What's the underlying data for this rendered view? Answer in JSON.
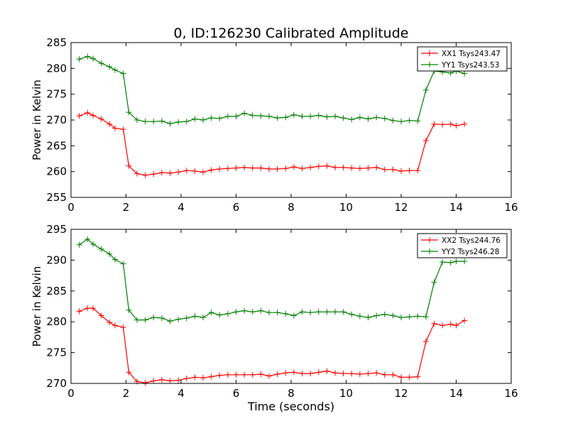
{
  "figure": {
    "title": "0, ID:126230 Calibrated Amplitude",
    "xlabel": "Time (seconds)"
  },
  "colors": {
    "XX": "#ff0000",
    "YY": "#008000",
    "frame": "#000000",
    "background": "#ffffff"
  },
  "chart_data": [
    {
      "type": "line",
      "title": "0, ID:126230 Calibrated Amplitude",
      "xlabel": "",
      "ylabel": "Power in Kelvin",
      "xlim": [
        0,
        16
      ],
      "ylim": [
        255,
        285
      ],
      "xticks": [
        "0",
        "2",
        "4",
        "6",
        "8",
        "10",
        "12",
        "14",
        "16"
      ],
      "yticks": [
        "255",
        "260",
        "265",
        "270",
        "275",
        "280",
        "285"
      ],
      "grid": false,
      "legend_position": "top-right",
      "x": [
        0.3,
        0.6,
        0.8,
        1.1,
        1.4,
        1.6,
        1.9,
        2.1,
        2.4,
        2.7,
        3.0,
        3.3,
        3.6,
        3.9,
        4.2,
        4.5,
        4.8,
        5.1,
        5.4,
        5.7,
        6.0,
        6.3,
        6.6,
        6.9,
        7.2,
        7.5,
        7.8,
        8.1,
        8.4,
        8.7,
        9.0,
        9.3,
        9.6,
        9.9,
        10.2,
        10.5,
        10.8,
        11.1,
        11.4,
        11.7,
        12.0,
        12.3,
        12.6,
        12.9,
        13.2,
        13.5,
        13.8,
        14.0,
        14.3
      ],
      "series": [
        {
          "name": "XX1 Tsys243.47",
          "color": "#ff0000",
          "values": [
            270.8,
            271.4,
            270.9,
            270.2,
            269.2,
            268.4,
            268.2,
            261.1,
            259.6,
            259.3,
            259.5,
            259.8,
            259.7,
            259.9,
            260.2,
            260.1,
            259.9,
            260.3,
            260.5,
            260.6,
            260.7,
            260.8,
            260.7,
            260.7,
            260.5,
            260.5,
            260.6,
            260.9,
            260.6,
            260.8,
            261.0,
            261.1,
            260.8,
            260.8,
            260.7,
            260.6,
            260.7,
            260.8,
            260.4,
            260.4,
            260.1,
            260.2,
            260.2,
            266.0,
            269.2,
            269.1,
            269.2,
            268.9,
            269.2
          ]
        },
        {
          "name": "YY1 Tsys243.53",
          "color": "#008000",
          "values": [
            281.8,
            282.3,
            281.9,
            281.0,
            280.3,
            279.7,
            279.0,
            271.5,
            270.0,
            269.7,
            269.7,
            269.8,
            269.3,
            269.6,
            269.7,
            270.2,
            270.0,
            270.4,
            270.3,
            270.7,
            270.7,
            271.3,
            270.9,
            270.8,
            270.7,
            270.4,
            270.5,
            271.0,
            270.7,
            270.7,
            270.9,
            270.6,
            270.7,
            270.4,
            270.1,
            270.5,
            270.2,
            270.5,
            270.3,
            269.9,
            269.7,
            269.9,
            269.8,
            275.8,
            279.5,
            279.3,
            279.1,
            279.5,
            279.0
          ]
        }
      ]
    },
    {
      "type": "line",
      "title": "",
      "xlabel": "Time (seconds)",
      "ylabel": "Power in Kelvin",
      "xlim": [
        0,
        16
      ],
      "ylim": [
        270,
        295
      ],
      "xticks": [
        "0",
        "2",
        "4",
        "6",
        "8",
        "10",
        "12",
        "14",
        "16"
      ],
      "yticks": [
        "270",
        "275",
        "280",
        "285",
        "290",
        "295"
      ],
      "grid": false,
      "legend_position": "top-right",
      "x": [
        0.3,
        0.6,
        0.8,
        1.1,
        1.4,
        1.6,
        1.9,
        2.1,
        2.4,
        2.7,
        3.0,
        3.3,
        3.6,
        3.9,
        4.2,
        4.5,
        4.8,
        5.1,
        5.4,
        5.7,
        6.0,
        6.3,
        6.6,
        6.9,
        7.2,
        7.5,
        7.8,
        8.1,
        8.4,
        8.7,
        9.0,
        9.3,
        9.6,
        9.9,
        10.2,
        10.5,
        10.8,
        11.1,
        11.4,
        11.7,
        12.0,
        12.3,
        12.6,
        12.9,
        13.2,
        13.5,
        13.8,
        14.0,
        14.3
      ],
      "series": [
        {
          "name": "XX2 Tsys244.76",
          "color": "#ff0000",
          "values": [
            281.7,
            282.2,
            282.2,
            281.0,
            279.9,
            279.4,
            279.1,
            271.8,
            270.3,
            270.1,
            270.4,
            270.6,
            270.4,
            270.5,
            270.8,
            271.0,
            270.9,
            271.1,
            271.3,
            271.4,
            271.4,
            271.4,
            271.4,
            271.5,
            271.2,
            271.5,
            271.7,
            271.8,
            271.6,
            271.6,
            271.8,
            272.0,
            271.7,
            271.6,
            271.6,
            271.5,
            271.6,
            271.7,
            271.4,
            271.4,
            271.0,
            271.0,
            271.1,
            276.8,
            279.7,
            279.4,
            279.6,
            279.4,
            280.2
          ]
        },
        {
          "name": "YY2 Tsys246.28",
          "color": "#008000",
          "values": [
            292.5,
            293.4,
            292.6,
            291.8,
            291.0,
            290.1,
            289.4,
            281.9,
            280.3,
            280.3,
            280.7,
            280.6,
            280.1,
            280.4,
            280.6,
            280.9,
            280.7,
            281.5,
            281.1,
            281.3,
            281.6,
            281.8,
            281.6,
            281.8,
            281.5,
            281.5,
            281.3,
            281.0,
            281.6,
            281.5,
            281.6,
            281.6,
            281.6,
            281.6,
            281.2,
            280.9,
            280.7,
            281.0,
            281.2,
            281.0,
            280.7,
            280.8,
            280.9,
            280.8,
            286.4,
            289.7,
            289.6,
            289.8,
            289.8
          ]
        }
      ]
    }
  ]
}
